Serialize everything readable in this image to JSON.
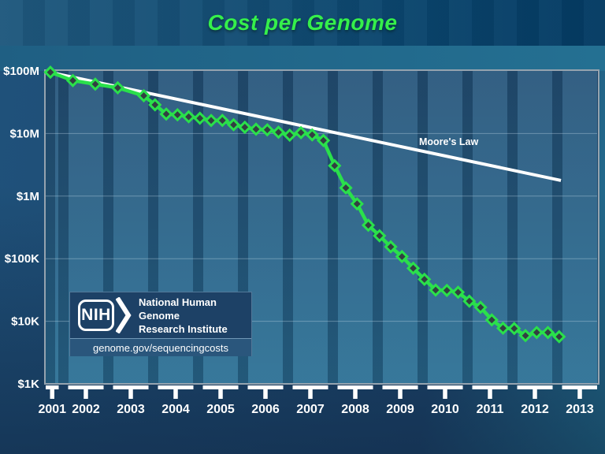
{
  "title": "Cost per Genome",
  "logo": {
    "acronym": "NIH",
    "org_line1": "National Human Genome",
    "org_line2": "Research Institute",
    "url": "genome.gov/sequencingcosts"
  },
  "colors": {
    "title_green": "#35ef4b",
    "series_green": "#2ae04b",
    "marker_fill": "#333e42",
    "moore_white": "#ffffff",
    "axis_text": "#ffffff",
    "gridline": "rgba(190,215,230,0.40)",
    "background_navy": "#1c3e63",
    "plot_blue": "#2a567b"
  },
  "chart_data": {
    "type": "line",
    "title": "Cost per Genome",
    "xlabel": "",
    "ylabel": "",
    "y_axis": {
      "scale": "log",
      "ticks": [
        {
          "label": "$100M",
          "value": 100000000
        },
        {
          "label": "$10M",
          "value": 10000000
        },
        {
          "label": "$1M",
          "value": 1000000
        },
        {
          "label": "$100K",
          "value": 100000
        },
        {
          "label": "$10K",
          "value": 10000
        },
        {
          "label": "$1K",
          "value": 1000
        }
      ],
      "range": [
        1000,
        100000000
      ]
    },
    "x_axis": {
      "years": [
        2001,
        2002,
        2003,
        2004,
        2005,
        2006,
        2007,
        2008,
        2009,
        2010,
        2011,
        2012,
        2013
      ]
    },
    "grid": true,
    "legend_position": "inline-label",
    "series": [
      {
        "name": "Cost per Genome",
        "marker": "diamond",
        "points": [
          {
            "date": "Sep-01",
            "t": 2001.71,
            "cost": 95263072
          },
          {
            "date": "Mar-02",
            "t": 2002.21,
            "cost": 70175437
          },
          {
            "date": "Sep-02",
            "t": 2002.71,
            "cost": 61448422
          },
          {
            "date": "Mar-03",
            "t": 2003.21,
            "cost": 53751684
          },
          {
            "date": "Oct-03",
            "t": 2003.79,
            "cost": 40157554
          },
          {
            "date": "Jan-04",
            "t": 2004.04,
            "cost": 28780376
          },
          {
            "date": "Apr-04",
            "t": 2004.29,
            "cost": 20442576
          },
          {
            "date": "Jul-04",
            "t": 2004.54,
            "cost": 19934346
          },
          {
            "date": "Oct-04",
            "t": 2004.79,
            "cost": 18519312
          },
          {
            "date": "Jan-05",
            "t": 2005.04,
            "cost": 17534970
          },
          {
            "date": "Apr-05",
            "t": 2005.29,
            "cost": 16159699
          },
          {
            "date": "Jul-05",
            "t": 2005.54,
            "cost": 16180224
          },
          {
            "date": "Oct-05",
            "t": 2005.79,
            "cost": 13801124
          },
          {
            "date": "Jan-06",
            "t": 2006.04,
            "cost": 12585659
          },
          {
            "date": "Apr-06",
            "t": 2006.29,
            "cost": 11732535
          },
          {
            "date": "Jul-06",
            "t": 2006.54,
            "cost": 11455315
          },
          {
            "date": "Oct-06",
            "t": 2006.79,
            "cost": 10474556
          },
          {
            "date": "Jan-07",
            "t": 2007.04,
            "cost": 9408739
          },
          {
            "date": "Apr-07",
            "t": 2007.29,
            "cost": 10314926
          },
          {
            "date": "Jul-07",
            "t": 2007.54,
            "cost": 9526324
          },
          {
            "date": "Oct-07",
            "t": 2007.79,
            "cost": 7743398
          },
          {
            "date": "Jan-08",
            "t": 2008.04,
            "cost": 3063820
          },
          {
            "date": "Apr-08",
            "t": 2008.29,
            "cost": 1352982
          },
          {
            "date": "Jul-08",
            "t": 2008.54,
            "cost": 752080
          },
          {
            "date": "Oct-08",
            "t": 2008.79,
            "cost": 342502
          },
          {
            "date": "Jan-09",
            "t": 2009.04,
            "cost": 232735
          },
          {
            "date": "Apr-09",
            "t": 2009.29,
            "cost": 154714
          },
          {
            "date": "Jul-09",
            "t": 2009.54,
            "cost": 108065
          },
          {
            "date": "Oct-09",
            "t": 2009.79,
            "cost": 70333
          },
          {
            "date": "Jan-10",
            "t": 2010.04,
            "cost": 46774
          },
          {
            "date": "Apr-10",
            "t": 2010.29,
            "cost": 31512
          },
          {
            "date": "Jul-10",
            "t": 2010.54,
            "cost": 31125
          },
          {
            "date": "Oct-10",
            "t": 2010.79,
            "cost": 29092
          },
          {
            "date": "Jan-11",
            "t": 2011.04,
            "cost": 20963
          },
          {
            "date": "Apr-11",
            "t": 2011.29,
            "cost": 16712
          },
          {
            "date": "Jul-11",
            "t": 2011.54,
            "cost": 10497
          },
          {
            "date": "Oct-11",
            "t": 2011.79,
            "cost": 7743
          },
          {
            "date": "Jan-12",
            "t": 2012.04,
            "cost": 7666
          },
          {
            "date": "Apr-12",
            "t": 2012.29,
            "cost": 5901
          },
          {
            "date": "Jul-12",
            "t": 2012.54,
            "cost": 6618
          },
          {
            "date": "Oct-12",
            "t": 2012.79,
            "cost": 6618
          },
          {
            "date": "Jan-13",
            "t": 2013.04,
            "cost": 5671
          }
        ]
      },
      {
        "name": "Moore's Law",
        "label": "Moore's Law",
        "type": "reference-line",
        "start": {
          "t": 2001.71,
          "cost": 94600000
        },
        "end": {
          "t": 2013.08,
          "cost": 1780000
        }
      }
    ]
  }
}
